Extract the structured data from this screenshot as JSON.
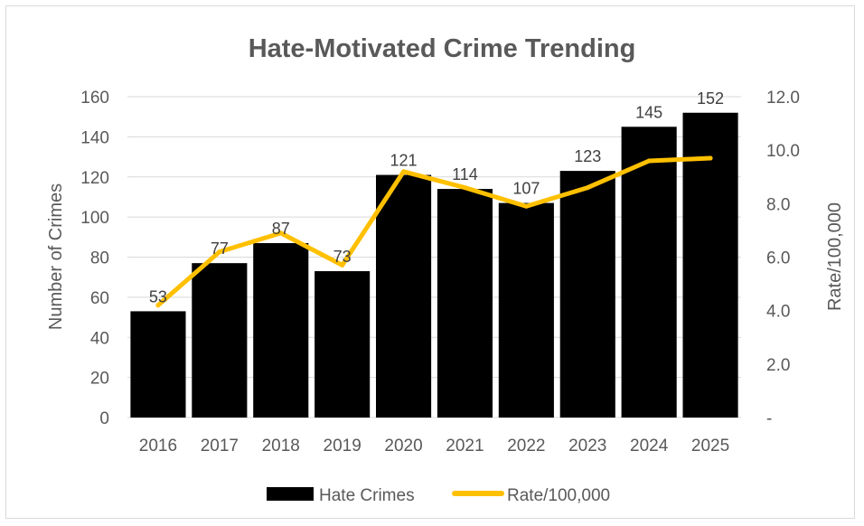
{
  "chart_data": {
    "type": "bar",
    "title": "Hate-Motivated Crime Trending",
    "categories": [
      "2016",
      "2017",
      "2018",
      "2019",
      "2020",
      "2021",
      "2022",
      "2023",
      "2024",
      "2025"
    ],
    "series": [
      {
        "name": "Hate Crimes",
        "type": "bar",
        "axis": "left",
        "color": "#000000",
        "values": [
          53,
          77,
          87,
          73,
          121,
          114,
          107,
          123,
          145,
          152
        ]
      },
      {
        "name": "Rate/100,000",
        "type": "line",
        "axis": "right",
        "color": "#FFC000",
        "values": [
          4.2,
          6.2,
          6.9,
          5.7,
          9.2,
          8.6,
          7.9,
          8.6,
          9.6,
          9.7
        ]
      }
    ],
    "ylabel": "Number of Crimes",
    "ylim": [
      0,
      160
    ],
    "yticks": [
      "0",
      "20",
      "40",
      "60",
      "80",
      "100",
      "120",
      "140",
      "160"
    ],
    "y2label": "Rate/100,000",
    "y2lim": [
      0,
      12
    ],
    "y2ticks": [
      "-",
      "2.0",
      "4.0",
      "6.0",
      "8.0",
      "10.0",
      "12.0"
    ],
    "grid": true,
    "legend_position": "bottom"
  }
}
